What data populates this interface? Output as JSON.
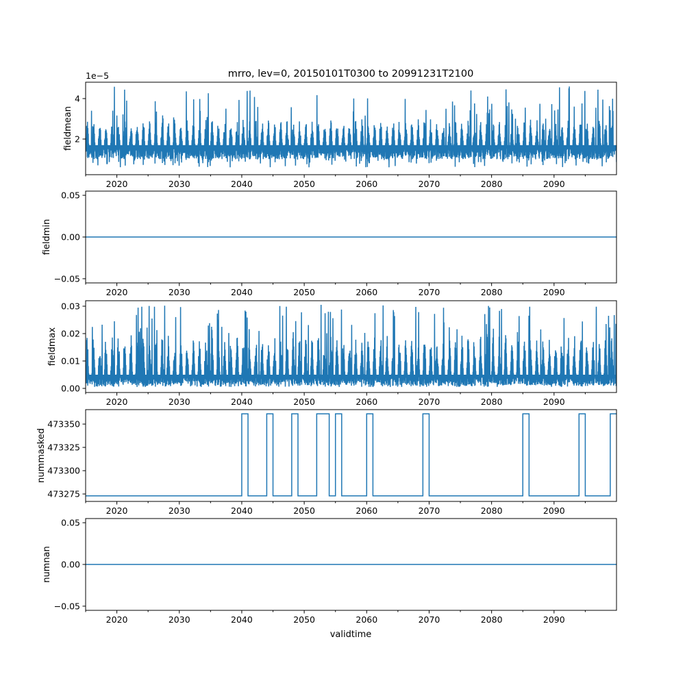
{
  "chart_data": {
    "type": "line",
    "title": "mrro, lev=0, 20150101T0300 to 20991231T2100",
    "xlabel": "validtime",
    "xlim": [
      2015,
      2100
    ],
    "x_ticks": [
      2020,
      2030,
      2040,
      2050,
      2060,
      2070,
      2080,
      2090
    ],
    "x_tick_labels": [
      "2020",
      "2030",
      "2040",
      "2050",
      "2060",
      "2070",
      "2080",
      "2090"
    ],
    "x_minor_ticks": [
      2015,
      2025,
      2035,
      2045,
      2055,
      2065,
      2075,
      2085,
      2095
    ],
    "line_color": "#1f77b4",
    "panels": [
      {
        "ylabel": "fieldmean",
        "offset_label": "1e−5",
        "ylim": [
          0.24,
          4.81
        ],
        "y_ticks": [
          2,
          4
        ],
        "y_tick_labels": [
          "2",
          "4"
        ],
        "series": {
          "kind": "noisy",
          "baseline": 1.7,
          "min": 0.6,
          "peak_max": 4.6,
          "typical_low": 1.0,
          "typical_high": 3.0
        }
      },
      {
        "ylabel": "fieldmin",
        "ylim": [
          -0.055,
          0.055
        ],
        "y_ticks": [
          -0.05,
          0.0,
          0.05
        ],
        "y_tick_labels": [
          "−0.05",
          "0.00",
          "0.05"
        ],
        "series": {
          "kind": "constant",
          "value": 0.0
        }
      },
      {
        "ylabel": "fieldmax",
        "ylim": [
          -0.0015,
          0.032
        ],
        "y_ticks": [
          0.0,
          0.01,
          0.02,
          0.03
        ],
        "y_tick_labels": [
          "0.00",
          "0.01",
          "0.02",
          "0.03"
        ],
        "series": {
          "kind": "noisy",
          "baseline": 0.005,
          "min": 0.0005,
          "peak_max": 0.0305,
          "typical_low": 0.001,
          "typical_high": 0.02
        }
      },
      {
        "ylabel": "nummasked",
        "ylim": [
          473267,
          473365.5
        ],
        "y_ticks": [
          473275,
          473300,
          473325,
          473350
        ],
        "y_tick_labels": [
          "473275",
          "473300",
          "473325",
          "473350"
        ],
        "series": {
          "kind": "step",
          "low": 473273,
          "high": 473361,
          "high_intervals": [
            [
              2040,
              2041
            ],
            [
              2044,
              2045
            ],
            [
              2048,
              2049
            ],
            [
              2052,
              2054
            ],
            [
              2055,
              2056
            ],
            [
              2060,
              2061
            ],
            [
              2069,
              2070
            ],
            [
              2085,
              2086
            ],
            [
              2094,
              2095
            ],
            [
              2099,
              2100
            ]
          ]
        }
      },
      {
        "ylabel": "numnan",
        "ylim": [
          -0.055,
          0.055
        ],
        "y_ticks": [
          -0.05,
          0.0,
          0.05
        ],
        "y_tick_labels": [
          "−0.05",
          "0.00",
          "0.05"
        ],
        "series": {
          "kind": "constant",
          "value": 0.0
        }
      }
    ]
  }
}
